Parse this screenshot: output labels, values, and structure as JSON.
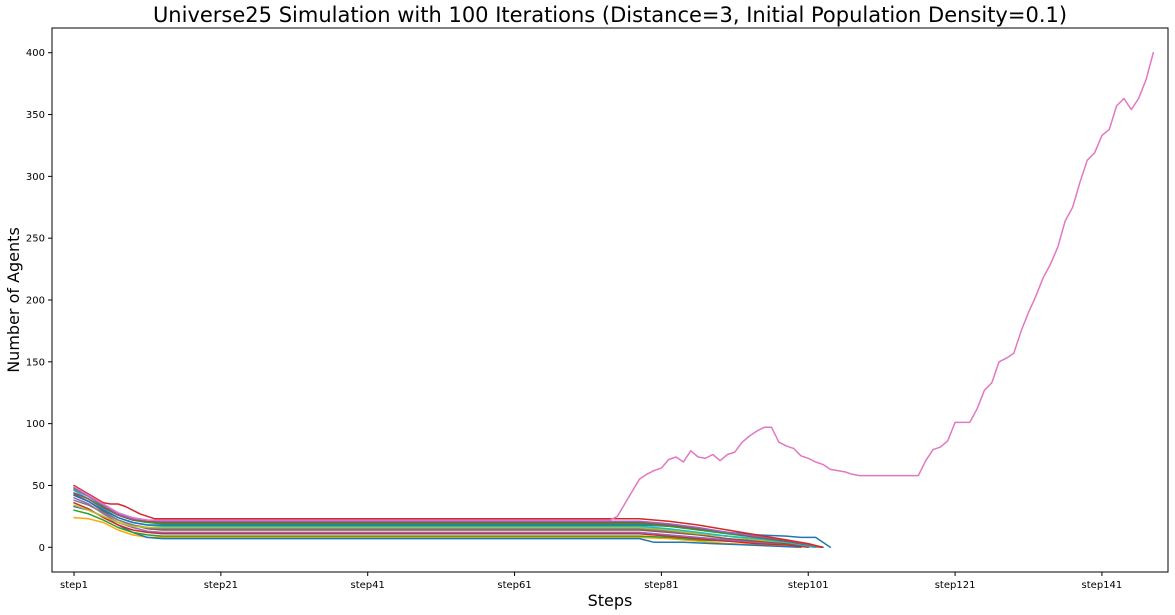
{
  "chart_data": {
    "type": "line",
    "title": "Universe25 Simulation with 100 Iterations (Distance=3, Initial Population Density=0.1)",
    "xlabel": "Steps",
    "ylabel": "Number of Agents",
    "x_tick_labels": [
      "step1",
      "step21",
      "step41",
      "step61",
      "step81",
      "step101",
      "step121",
      "step141"
    ],
    "x_tick_positions": [
      1,
      21,
      41,
      61,
      81,
      101,
      121,
      141
    ],
    "y_ticks": [
      0,
      50,
      100,
      150,
      200,
      250,
      300,
      350,
      400
    ],
    "xlim": [
      -2,
      150
    ],
    "ylim": [
      -20,
      420
    ],
    "grid": false,
    "colors": [
      "#1f77b4",
      "#ff7f0e",
      "#2ca02c",
      "#d62728",
      "#9467bd",
      "#8c564b",
      "#e377c2",
      "#7f7f7f",
      "#bcbd22",
      "#17becf"
    ],
    "series": [
      {
        "color": "#ffa500",
        "points": [
          [
            1,
            24
          ],
          [
            3,
            23
          ],
          [
            5,
            20
          ],
          [
            7,
            14
          ],
          [
            9,
            10
          ],
          [
            11,
            8
          ],
          [
            13,
            8
          ],
          [
            78,
            8
          ],
          [
            82,
            7
          ],
          [
            86,
            5
          ],
          [
            90,
            3
          ],
          [
            94,
            2
          ],
          [
            98,
            1
          ],
          [
            103,
            0
          ]
        ]
      },
      {
        "color": "#1f77b4",
        "points": [
          [
            1,
            33
          ],
          [
            3,
            30
          ],
          [
            5,
            25
          ],
          [
            7,
            18
          ],
          [
            9,
            12
          ],
          [
            11,
            8
          ],
          [
            13,
            7
          ],
          [
            78,
            7
          ],
          [
            80,
            4
          ],
          [
            84,
            4
          ],
          [
            88,
            3
          ],
          [
            92,
            2
          ],
          [
            96,
            1
          ],
          [
            100,
            0
          ]
        ]
      },
      {
        "color": "#2ca02c",
        "points": [
          [
            1,
            30
          ],
          [
            3,
            27
          ],
          [
            5,
            22
          ],
          [
            7,
            16
          ],
          [
            9,
            12
          ],
          [
            11,
            10
          ],
          [
            13,
            9
          ],
          [
            78,
            9
          ],
          [
            82,
            8
          ],
          [
            86,
            6
          ],
          [
            90,
            5
          ],
          [
            94,
            4
          ],
          [
            98,
            2
          ],
          [
            103,
            0
          ]
        ]
      },
      {
        "color": "#d62728",
        "points": [
          [
            1,
            36
          ],
          [
            3,
            31
          ],
          [
            5,
            24
          ],
          [
            7,
            18
          ],
          [
            9,
            14
          ],
          [
            11,
            12
          ],
          [
            13,
            11
          ],
          [
            78,
            11
          ],
          [
            82,
            9
          ],
          [
            86,
            7
          ],
          [
            90,
            5
          ],
          [
            94,
            3
          ],
          [
            98,
            2
          ],
          [
            101,
            0
          ]
        ]
      },
      {
        "color": "#9467bd",
        "points": [
          [
            1,
            40
          ],
          [
            3,
            35
          ],
          [
            5,
            27
          ],
          [
            7,
            20
          ],
          [
            9,
            16
          ],
          [
            11,
            13
          ],
          [
            13,
            12
          ],
          [
            78,
            12
          ],
          [
            82,
            10
          ],
          [
            86,
            8
          ],
          [
            90,
            6
          ],
          [
            94,
            4
          ],
          [
            98,
            3
          ],
          [
            103,
            0
          ]
        ]
      },
      {
        "color": "#8c564b",
        "points": [
          [
            1,
            43
          ],
          [
            3,
            37
          ],
          [
            5,
            29
          ],
          [
            7,
            22
          ],
          [
            9,
            18
          ],
          [
            11,
            15
          ],
          [
            13,
            14
          ],
          [
            78,
            14
          ],
          [
            82,
            12
          ],
          [
            86,
            10
          ],
          [
            90,
            7
          ],
          [
            94,
            5
          ],
          [
            98,
            3
          ],
          [
            102,
            0
          ]
        ]
      },
      {
        "color": "#7f7f7f",
        "points": [
          [
            1,
            38
          ],
          [
            3,
            34
          ],
          [
            5,
            28
          ],
          [
            7,
            22
          ],
          [
            9,
            18
          ],
          [
            11,
            16
          ],
          [
            13,
            15
          ],
          [
            78,
            15
          ],
          [
            82,
            13
          ],
          [
            86,
            11
          ],
          [
            90,
            9
          ],
          [
            94,
            6
          ],
          [
            98,
            4
          ],
          [
            103,
            0
          ]
        ]
      },
      {
        "color": "#bcbd22",
        "points": [
          [
            1,
            34
          ],
          [
            3,
            30
          ],
          [
            5,
            25
          ],
          [
            7,
            20
          ],
          [
            9,
            17
          ],
          [
            11,
            16
          ],
          [
            13,
            16
          ],
          [
            78,
            16
          ],
          [
            82,
            14
          ],
          [
            86,
            11
          ],
          [
            90,
            9
          ],
          [
            94,
            6
          ],
          [
            98,
            4
          ],
          [
            103,
            0
          ]
        ]
      },
      {
        "color": "#17becf",
        "points": [
          [
            1,
            46
          ],
          [
            3,
            39
          ],
          [
            5,
            31
          ],
          [
            7,
            24
          ],
          [
            9,
            20
          ],
          [
            11,
            18
          ],
          [
            13,
            17
          ],
          [
            78,
            17
          ],
          [
            82,
            15
          ],
          [
            86,
            12
          ],
          [
            90,
            9
          ],
          [
            94,
            7
          ],
          [
            98,
            4
          ],
          [
            102,
            0
          ]
        ]
      },
      {
        "color": "#1f77b4",
        "points": [
          [
            1,
            42
          ],
          [
            3,
            37
          ],
          [
            5,
            30
          ],
          [
            7,
            24
          ],
          [
            9,
            20
          ],
          [
            11,
            18
          ],
          [
            13,
            18
          ],
          [
            78,
            18
          ],
          [
            82,
            17
          ],
          [
            86,
            15
          ],
          [
            90,
            12
          ],
          [
            94,
            10
          ],
          [
            98,
            9
          ],
          [
            100,
            8
          ],
          [
            102,
            8
          ],
          [
            103,
            4
          ],
          [
            104,
            0
          ]
        ]
      },
      {
        "color": "#2ca02c",
        "points": [
          [
            1,
            48
          ],
          [
            3,
            41
          ],
          [
            5,
            33
          ],
          [
            7,
            26
          ],
          [
            9,
            22
          ],
          [
            11,
            20
          ],
          [
            13,
            19
          ],
          [
            78,
            19
          ],
          [
            82,
            17
          ],
          [
            86,
            14
          ],
          [
            90,
            11
          ],
          [
            94,
            8
          ],
          [
            98,
            5
          ],
          [
            103,
            0
          ]
        ]
      },
      {
        "color": "#8c564b",
        "points": [
          [
            1,
            44
          ],
          [
            3,
            39
          ],
          [
            5,
            32
          ],
          [
            7,
            26
          ],
          [
            9,
            22
          ],
          [
            11,
            21
          ],
          [
            13,
            20
          ],
          [
            78,
            20
          ],
          [
            82,
            18
          ],
          [
            86,
            15
          ],
          [
            90,
            12
          ],
          [
            94,
            8
          ],
          [
            98,
            5
          ],
          [
            103,
            0
          ]
        ]
      },
      {
        "color": "#9467bd",
        "points": [
          [
            1,
            47
          ],
          [
            3,
            41
          ],
          [
            5,
            34
          ],
          [
            7,
            27
          ],
          [
            9,
            23
          ],
          [
            11,
            22
          ],
          [
            13,
            21
          ],
          [
            78,
            21
          ],
          [
            82,
            19
          ],
          [
            86,
            16
          ],
          [
            90,
            12
          ],
          [
            94,
            9
          ],
          [
            98,
            6
          ],
          [
            103,
            0
          ]
        ]
      },
      {
        "color": "#d62728",
        "points": [
          [
            1,
            50
          ],
          [
            3,
            43
          ],
          [
            5,
            36
          ],
          [
            6,
            35
          ],
          [
            7,
            35
          ],
          [
            8,
            33
          ],
          [
            10,
            27
          ],
          [
            12,
            23
          ],
          [
            13,
            23
          ],
          [
            78,
            23
          ],
          [
            82,
            21
          ],
          [
            86,
            18
          ],
          [
            90,
            14
          ],
          [
            94,
            10
          ],
          [
            98,
            6
          ],
          [
            101,
            3
          ],
          [
            103,
            0
          ]
        ]
      },
      {
        "color": "#e377c2",
        "points": [
          [
            1,
            49
          ],
          [
            3,
            42
          ],
          [
            5,
            35
          ],
          [
            7,
            28
          ],
          [
            9,
            24
          ],
          [
            11,
            22
          ],
          [
            13,
            22
          ],
          [
            74,
            22
          ],
          [
            75,
            25
          ],
          [
            76,
            35
          ],
          [
            77,
            45
          ],
          [
            78,
            55
          ],
          [
            79,
            59
          ],
          [
            80,
            62
          ],
          [
            81,
            64
          ],
          [
            82,
            71
          ],
          [
            83,
            73
          ],
          [
            84,
            69
          ],
          [
            85,
            78
          ],
          [
            86,
            73
          ],
          [
            87,
            72
          ],
          [
            88,
            75
          ],
          [
            89,
            70
          ],
          [
            90,
            75
          ],
          [
            91,
            77
          ],
          [
            92,
            85
          ],
          [
            93,
            90
          ],
          [
            94,
            94
          ],
          [
            95,
            97
          ],
          [
            96,
            97
          ],
          [
            97,
            85
          ],
          [
            98,
            82
          ],
          [
            99,
            80
          ],
          [
            100,
            74
          ],
          [
            101,
            72
          ],
          [
            102,
            69
          ],
          [
            103,
            67
          ],
          [
            104,
            63
          ],
          [
            105,
            62
          ],
          [
            106,
            61
          ],
          [
            107,
            59
          ],
          [
            108,
            58
          ],
          [
            109,
            58
          ],
          [
            110,
            58
          ],
          [
            111,
            58
          ],
          [
            112,
            58
          ],
          [
            113,
            58
          ],
          [
            114,
            58
          ],
          [
            115,
            58
          ],
          [
            116,
            58
          ],
          [
            117,
            70
          ],
          [
            118,
            79
          ],
          [
            119,
            81
          ],
          [
            120,
            86
          ],
          [
            121,
            101
          ],
          [
            122,
            101
          ],
          [
            123,
            101
          ],
          [
            124,
            112
          ],
          [
            125,
            127
          ],
          [
            126,
            133
          ],
          [
            127,
            150
          ],
          [
            128,
            153
          ],
          [
            129,
            157
          ],
          [
            130,
            175
          ],
          [
            131,
            190
          ],
          [
            132,
            203
          ],
          [
            133,
            218
          ],
          [
            134,
            229
          ],
          [
            135,
            243
          ],
          [
            136,
            264
          ],
          [
            137,
            275
          ],
          [
            138,
            295
          ],
          [
            139,
            313
          ],
          [
            140,
            319
          ],
          [
            141,
            333
          ],
          [
            142,
            338
          ],
          [
            143,
            357
          ],
          [
            144,
            363
          ],
          [
            145,
            354
          ],
          [
            146,
            363
          ],
          [
            147,
            378
          ],
          [
            148,
            400
          ]
        ]
      }
    ]
  }
}
